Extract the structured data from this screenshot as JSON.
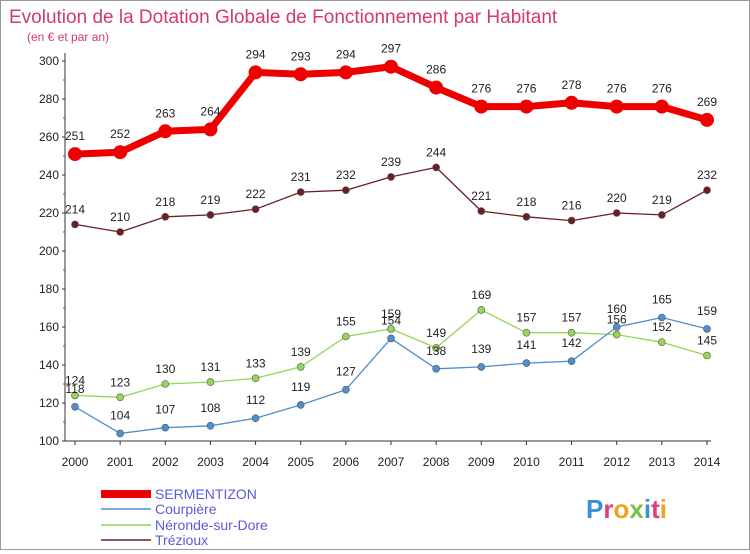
{
  "chart_data": {
    "type": "line",
    "title": "Evolution de la Dotation Globale de Fonctionnement par Habitant",
    "subtitle": "(en € et par an)",
    "x": [
      "2000",
      "2001",
      "2002",
      "2003",
      "2004",
      "2005",
      "2006",
      "2007",
      "2008",
      "2009",
      "2010",
      "2011",
      "2012",
      "2013",
      "2014"
    ],
    "ylim": [
      100,
      300
    ],
    "yticks": [
      100,
      120,
      140,
      160,
      180,
      200,
      220,
      240,
      260,
      280,
      300
    ],
    "grid": false,
    "legend_position": "bottom-left",
    "series": [
      {
        "name": "SERMENTIZON",
        "color": "#ee0000",
        "values": [
          251,
          252,
          263,
          264,
          294,
          293,
          294,
          297,
          286,
          276,
          276,
          278,
          276,
          276,
          269
        ]
      },
      {
        "name": "Courpière",
        "color": "#4f8fcc",
        "values": [
          118,
          104,
          107,
          108,
          112,
          119,
          127,
          154,
          138,
          139,
          141,
          142,
          160,
          165,
          159
        ]
      },
      {
        "name": "Néronde-sur-Dore",
        "color": "#96d558",
        "values": [
          124,
          123,
          130,
          131,
          133,
          139,
          155,
          159,
          149,
          169,
          157,
          157,
          156,
          152,
          145
        ]
      },
      {
        "name": "Trézioux",
        "color": "#6b1f23",
        "values": [
          214,
          210,
          218,
          219,
          222,
          231,
          232,
          239,
          244,
          221,
          218,
          216,
          220,
          219,
          232
        ]
      }
    ]
  },
  "logo": {
    "text": "Proxiti"
  }
}
